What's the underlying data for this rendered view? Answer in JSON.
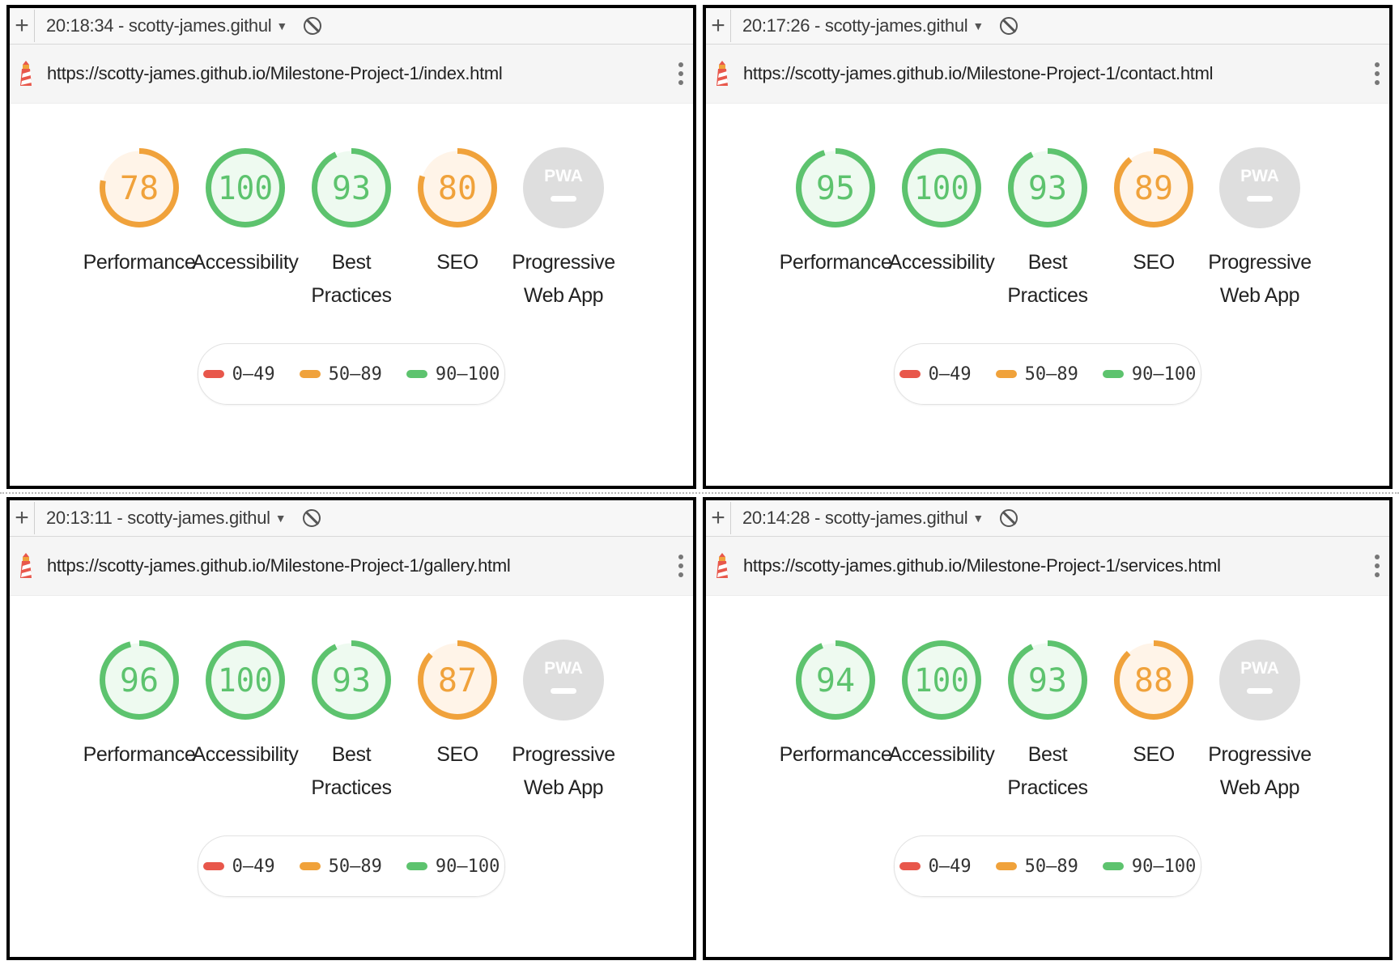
{
  "colors": {
    "fail": "#e8574b",
    "average": "#f0a23b",
    "pass": "#5dc36e",
    "fail_bg": "#fdecea",
    "average_bg": "#fff4e8",
    "pass_bg": "#eefaf0",
    "pwa_bg": "#dedede",
    "pwa_fg": "#ffffff",
    "legend_text": "#333333"
  },
  "legend": [
    {
      "label": "0–49",
      "color": "fail"
    },
    {
      "label": "50–89",
      "color": "average"
    },
    {
      "label": "90–100",
      "color": "pass"
    }
  ],
  "panels": [
    {
      "tab_title": "20:18:34 - scotty-james.githul",
      "url": "https://scotty-james.github.io/Milestone-Project-1/index.html",
      "scores": [
        {
          "label": "Performance",
          "value": "78",
          "score": 78,
          "rating": "average"
        },
        {
          "label": "Accessibility",
          "value": "100",
          "score": 100,
          "rating": "pass"
        },
        {
          "label": "Best\nPractices",
          "value": "93",
          "score": 93,
          "rating": "pass"
        },
        {
          "label": "SEO",
          "value": "80",
          "score": 80,
          "rating": "average"
        },
        {
          "label": "Progressive\nWeb App",
          "value": "PWA",
          "score": null,
          "rating": "pwa"
        }
      ]
    },
    {
      "tab_title": "20:17:26 - scotty-james.githul",
      "url": "https://scotty-james.github.io/Milestone-Project-1/contact.html",
      "scores": [
        {
          "label": "Performance",
          "value": "95",
          "score": 95,
          "rating": "pass"
        },
        {
          "label": "Accessibility",
          "value": "100",
          "score": 100,
          "rating": "pass"
        },
        {
          "label": "Best\nPractices",
          "value": "93",
          "score": 93,
          "rating": "pass"
        },
        {
          "label": "SEO",
          "value": "89",
          "score": 89,
          "rating": "average"
        },
        {
          "label": "Progressive\nWeb App",
          "value": "PWA",
          "score": null,
          "rating": "pwa"
        }
      ]
    },
    {
      "tab_title": "20:13:11 - scotty-james.githul",
      "url": "https://scotty-james.github.io/Milestone-Project-1/gallery.html",
      "scores": [
        {
          "label": "Performance",
          "value": "96",
          "score": 96,
          "rating": "pass"
        },
        {
          "label": "Accessibility",
          "value": "100",
          "score": 100,
          "rating": "pass"
        },
        {
          "label": "Best\nPractices",
          "value": "93",
          "score": 93,
          "rating": "pass"
        },
        {
          "label": "SEO",
          "value": "87",
          "score": 87,
          "rating": "average"
        },
        {
          "label": "Progressive\nWeb App",
          "value": "PWA",
          "score": null,
          "rating": "pwa"
        }
      ]
    },
    {
      "tab_title": "20:14:28 - scotty-james.githul",
      "url": "https://scotty-james.github.io/Milestone-Project-1/services.html",
      "scores": [
        {
          "label": "Performance",
          "value": "94",
          "score": 94,
          "rating": "pass"
        },
        {
          "label": "Accessibility",
          "value": "100",
          "score": 100,
          "rating": "pass"
        },
        {
          "label": "Best\nPractices",
          "value": "93",
          "score": 93,
          "rating": "pass"
        },
        {
          "label": "SEO",
          "value": "88",
          "score": 88,
          "rating": "average"
        },
        {
          "label": "Progressive\nWeb App",
          "value": "PWA",
          "score": null,
          "rating": "pwa"
        }
      ]
    }
  ]
}
